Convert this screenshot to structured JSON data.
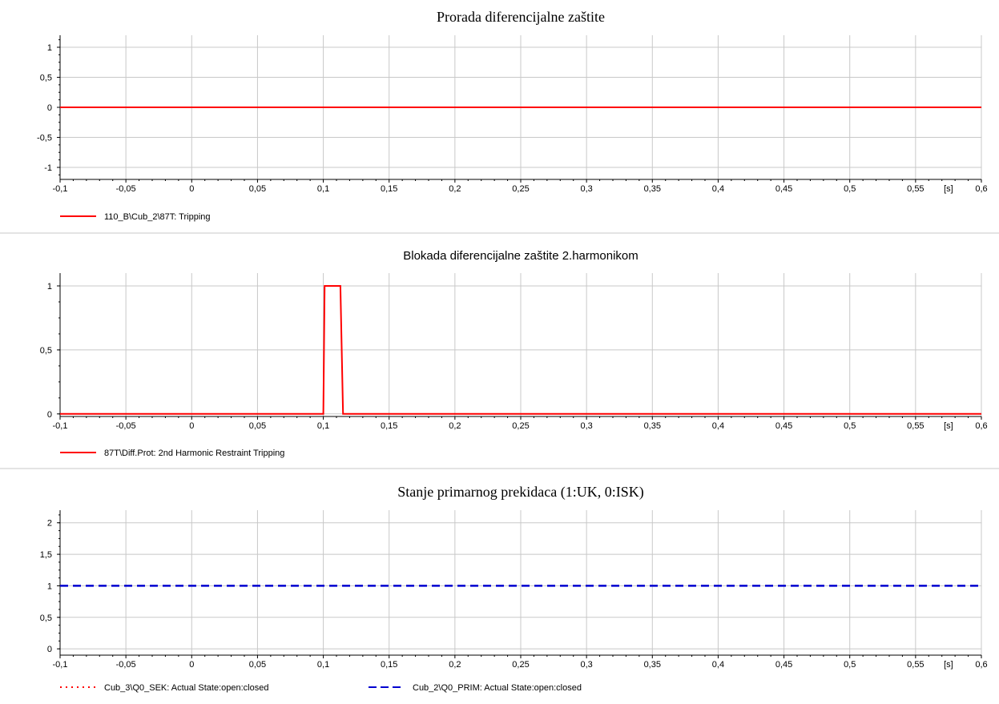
{
  "colors": {
    "red": "#ff0000",
    "blue": "#0000d0",
    "grid": "#c8c8c8",
    "separator": "#c8c8c8"
  },
  "chart_data": [
    {
      "type": "line",
      "title": "Prorada diferencijalne zaštite",
      "xlim": [
        -0.1,
        0.6
      ],
      "ylim": [
        -1.2,
        1.2
      ],
      "x_ticks": [
        "-0,1",
        "-0,05",
        "0",
        "0,05",
        "0,1",
        "0,15",
        "0,2",
        "0,25",
        "0,3",
        "0,35",
        "0,4",
        "0,45",
        "0,5",
        "0,55",
        "0,6"
      ],
      "x_unit": "[s]",
      "y_ticks": [
        "-1",
        "-0,5",
        "0",
        "0,5",
        "1"
      ],
      "y_tick_values": [
        -1,
        -0.5,
        0,
        0.5,
        1
      ],
      "grid": true,
      "legend_position": "bottom-left",
      "series": [
        {
          "name": "110_B\\Cub_2\\87T: Tripping",
          "color": "#ff0000",
          "style": "solid",
          "x": [
            -0.1,
            0.6
          ],
          "y": [
            0,
            0
          ]
        }
      ]
    },
    {
      "type": "line",
      "title": "Blokada diferencijalne zaštite 2.harmonikom",
      "xlim": [
        -0.1,
        0.6
      ],
      "ylim": [
        -0.02,
        1.1
      ],
      "x_ticks": [
        "-0,1",
        "-0,05",
        "0",
        "0,05",
        "0,1",
        "0,15",
        "0,2",
        "0,25",
        "0,3",
        "0,35",
        "0,4",
        "0,45",
        "0,5",
        "0,55",
        "0,6"
      ],
      "x_unit": "[s]",
      "y_ticks": [
        "0",
        "0,5",
        "1"
      ],
      "y_tick_values": [
        0,
        0.5,
        1
      ],
      "grid": true,
      "legend_position": "bottom-left",
      "series": [
        {
          "name": "87T\\Diff.Prot: 2nd Harmonic Restraint Tripping",
          "color": "#ff0000",
          "style": "solid",
          "x": [
            -0.1,
            0.1,
            0.101,
            0.113,
            0.115,
            0.6
          ],
          "y": [
            0,
            0,
            1,
            1,
            0,
            0
          ]
        }
      ]
    },
    {
      "type": "line",
      "title": "Stanje primarnog prekidaca (1:UK, 0:ISK)",
      "xlim": [
        -0.1,
        0.6
      ],
      "ylim": [
        -0.1,
        2.2
      ],
      "x_ticks": [
        "-0,1",
        "-0,05",
        "0",
        "0,05",
        "0,1",
        "0,15",
        "0,2",
        "0,25",
        "0,3",
        "0,35",
        "0,4",
        "0,45",
        "0,5",
        "0,55",
        "0,6"
      ],
      "x_unit": "[s]",
      "y_ticks": [
        "0",
        "0,5",
        "1",
        "1,5",
        "2"
      ],
      "y_tick_values": [
        0,
        0.5,
        1,
        1.5,
        2
      ],
      "grid": true,
      "legend_position": "bottom-left",
      "series": [
        {
          "name": "Cub_3\\Q0_SEK: Actual State:open:closed",
          "color": "#ff0000",
          "style": "dotted",
          "x": [
            -0.1,
            0.6
          ],
          "y": [
            1,
            1
          ]
        },
        {
          "name": "Cub_2\\Q0_PRIM: Actual State:open:closed",
          "color": "#0000d0",
          "style": "dashed",
          "x": [
            -0.1,
            0.6
          ],
          "y": [
            1,
            1
          ]
        }
      ]
    }
  ]
}
